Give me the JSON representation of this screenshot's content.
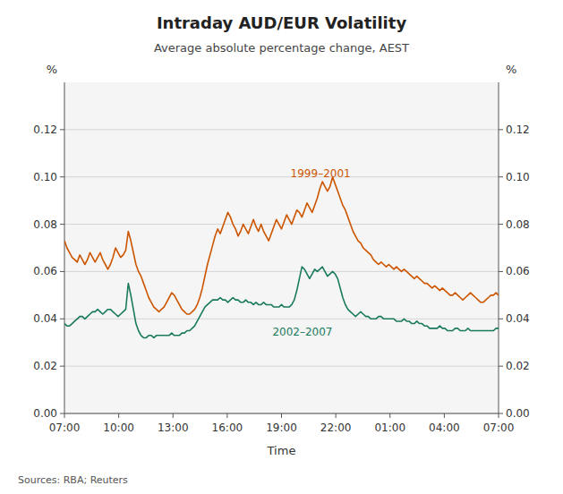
{
  "chart_data": {
    "type": "line",
    "title": "Intraday AUD/EUR Volatility",
    "subtitle": "Average absolute percentage change, AEST",
    "xlabel": "Time",
    "ylabel": "%",
    "y2label": "%",
    "source": "Sources: RBA; Reuters",
    "grid": true,
    "xlim": [
      0,
      24
    ],
    "xticks": [
      {
        "value": 0,
        "label": "07:00"
      },
      {
        "value": 3,
        "label": "10:00"
      },
      {
        "value": 6,
        "label": "13:00"
      },
      {
        "value": 9,
        "label": "16:00"
      },
      {
        "value": 12,
        "label": "19:00"
      },
      {
        "value": 15,
        "label": "22:00"
      },
      {
        "value": 18,
        "label": "01:00"
      },
      {
        "value": 21,
        "label": "04:00"
      },
      {
        "value": 24,
        "label": "07:00"
      }
    ],
    "ylim": [
      0.0,
      0.14
    ],
    "yticks": [
      {
        "value": 0.0,
        "label": "0.00"
      },
      {
        "value": 0.02,
        "label": "0.02"
      },
      {
        "value": 0.04,
        "label": "0.04"
      },
      {
        "value": 0.06,
        "label": "0.06"
      },
      {
        "value": 0.08,
        "label": "0.08"
      },
      {
        "value": 0.1,
        "label": "0.10"
      },
      {
        "value": 0.12,
        "label": "0.12"
      }
    ],
    "y2lim": [
      0.0,
      0.14
    ],
    "y2ticks": [
      {
        "value": 0.0,
        "label": "0.00"
      },
      {
        "value": 0.02,
        "label": "0.02"
      },
      {
        "value": 0.04,
        "label": "0.04"
      },
      {
        "value": 0.06,
        "label": "0.06"
      },
      {
        "value": 0.08,
        "label": "0.08"
      },
      {
        "value": 0.1,
        "label": "0.10"
      },
      {
        "value": 0.12,
        "label": "0.12"
      }
    ],
    "annotations": [
      {
        "text": "1999–2001",
        "x": 12.5,
        "y": 0.1
      },
      {
        "text": "2002–2007",
        "x": 11.5,
        "y": 0.033
      }
    ],
    "x": [
      0,
      0.1412,
      0.2824,
      0.4235,
      0.5647,
      0.7059,
      0.8471,
      0.9882,
      1.1294,
      1.2706,
      1.4118,
      1.5529,
      1.6941,
      1.8353,
      1.9765,
      2.1176,
      2.2588,
      2.4,
      2.5412,
      2.6824,
      2.8235,
      2.9647,
      3.1059,
      3.2471,
      3.3882,
      3.5294,
      3.6706,
      3.8118,
      3.9529,
      4.0941,
      4.2353,
      4.3765,
      4.5176,
      4.6588,
      4.8,
      4.9412,
      5.0824,
      5.2235,
      5.3647,
      5.5059,
      5.6471,
      5.7882,
      5.9294,
      6.0706,
      6.2118,
      6.3529,
      6.4941,
      6.6353,
      6.7765,
      6.9176,
      7.0588,
      7.2,
      7.3412,
      7.4824,
      7.6235,
      7.7647,
      7.9059,
      8.0471,
      8.1882,
      8.3294,
      8.4706,
      8.6118,
      8.7529,
      8.8941,
      9.0353,
      9.1765,
      9.3176,
      9.4588,
      9.6,
      9.7412,
      9.8824,
      10.0235,
      10.1647,
      10.3059,
      10.4471,
      10.5882,
      10.7294,
      10.8706,
      11.0118,
      11.1529,
      11.2941,
      11.4353,
      11.5765,
      11.7176,
      11.8588,
      12,
      12.1412,
      12.2824,
      12.4235,
      12.5647,
      12.7059,
      12.8471,
      12.9882,
      13.1294,
      13.2706,
      13.4118,
      13.5529,
      13.6941,
      13.8353,
      13.9765,
      14.1176,
      14.2588,
      14.4,
      14.5412,
      14.6824,
      14.8235,
      14.9647,
      15.1059,
      15.2471,
      15.3882,
      15.5294,
      15.6706,
      15.8118,
      15.9529,
      16.0941,
      16.2353,
      16.3765,
      16.5176,
      16.6588,
      16.8,
      16.9412,
      17.0824,
      17.2235,
      17.3647,
      17.5059,
      17.6471,
      17.7882,
      17.9294,
      18.0706,
      18.2118,
      18.3529,
      18.4941,
      18.6353,
      18.7765,
      18.9176,
      19.0588,
      19.2,
      19.3412,
      19.4824,
      19.6235,
      19.7647,
      19.9059,
      20.0471,
      20.1882,
      20.3294,
      20.4706,
      20.6118,
      20.7529,
      20.8941,
      21.0353,
      21.1765,
      21.3176,
      21.4588,
      21.6,
      21.7412,
      21.8824,
      22.0235,
      22.1647,
      22.3059,
      22.4471,
      22.5882,
      22.7294,
      22.8706,
      23.0118,
      23.1529,
      23.2941,
      23.4353,
      23.5765,
      23.7176,
      23.8588,
      24
    ],
    "series": [
      {
        "color": "#CC5500",
        "values": [
          0.073,
          0.07,
          0.068,
          0.066,
          0.065,
          0.064,
          0.067,
          0.065,
          0.063,
          0.065,
          0.068,
          0.066,
          0.064,
          0.066,
          0.068,
          0.065,
          0.063,
          0.061,
          0.063,
          0.066,
          0.07,
          0.068,
          0.066,
          0.067,
          0.069,
          0.077,
          0.073,
          0.068,
          0.063,
          0.06,
          0.058,
          0.055,
          0.052,
          0.049,
          0.047,
          0.045,
          0.044,
          0.043,
          0.044,
          0.045,
          0.047,
          0.049,
          0.051,
          0.05,
          0.048,
          0.046,
          0.044,
          0.043,
          0.042,
          0.042,
          0.043,
          0.044,
          0.046,
          0.049,
          0.053,
          0.058,
          0.063,
          0.067,
          0.071,
          0.075,
          0.078,
          0.076,
          0.079,
          0.082,
          0.085,
          0.083,
          0.08,
          0.078,
          0.075,
          0.077,
          0.08,
          0.078,
          0.076,
          0.079,
          0.082,
          0.079,
          0.077,
          0.08,
          0.077,
          0.075,
          0.073,
          0.076,
          0.079,
          0.082,
          0.08,
          0.078,
          0.081,
          0.084,
          0.082,
          0.08,
          0.083,
          0.086,
          0.085,
          0.083,
          0.086,
          0.089,
          0.087,
          0.085,
          0.088,
          0.091,
          0.095,
          0.098,
          0.096,
          0.094,
          0.096,
          0.1,
          0.097,
          0.094,
          0.091,
          0.088,
          0.086,
          0.083,
          0.08,
          0.077,
          0.075,
          0.073,
          0.072,
          0.07,
          0.069,
          0.068,
          0.067,
          0.065,
          0.064,
          0.063,
          0.064,
          0.063,
          0.062,
          0.063,
          0.062,
          0.061,
          0.062,
          0.061,
          0.06,
          0.061,
          0.06,
          0.059,
          0.058,
          0.057,
          0.058,
          0.057,
          0.056,
          0.055,
          0.055,
          0.054,
          0.053,
          0.054,
          0.053,
          0.052,
          0.053,
          0.052,
          0.051,
          0.05,
          0.05,
          0.051,
          0.05,
          0.049,
          0.048,
          0.049,
          0.05,
          0.051,
          0.05,
          0.049,
          0.048,
          0.047,
          0.047,
          0.048,
          0.049,
          0.05,
          0.05,
          0.051,
          0.05
        ]
      },
      {
        "color": "#1A7A5E",
        "values": [
          0.038,
          0.037,
          0.037,
          0.038,
          0.039,
          0.04,
          0.041,
          0.041,
          0.04,
          0.041,
          0.042,
          0.043,
          0.043,
          0.044,
          0.043,
          0.042,
          0.043,
          0.044,
          0.044,
          0.043,
          0.042,
          0.041,
          0.042,
          0.043,
          0.044,
          0.055,
          0.05,
          0.044,
          0.038,
          0.035,
          0.033,
          0.032,
          0.032,
          0.033,
          0.033,
          0.032,
          0.033,
          0.033,
          0.033,
          0.033,
          0.033,
          0.033,
          0.034,
          0.033,
          0.033,
          0.033,
          0.034,
          0.034,
          0.035,
          0.035,
          0.036,
          0.037,
          0.039,
          0.041,
          0.043,
          0.045,
          0.046,
          0.047,
          0.048,
          0.048,
          0.048,
          0.049,
          0.048,
          0.048,
          0.047,
          0.048,
          0.049,
          0.048,
          0.048,
          0.047,
          0.047,
          0.048,
          0.047,
          0.047,
          0.046,
          0.047,
          0.046,
          0.046,
          0.047,
          0.046,
          0.046,
          0.046,
          0.045,
          0.045,
          0.045,
          0.046,
          0.045,
          0.045,
          0.045,
          0.046,
          0.048,
          0.052,
          0.057,
          0.062,
          0.061,
          0.059,
          0.057,
          0.059,
          0.061,
          0.06,
          0.061,
          0.062,
          0.06,
          0.058,
          0.059,
          0.06,
          0.059,
          0.057,
          0.053,
          0.049,
          0.046,
          0.044,
          0.043,
          0.042,
          0.041,
          0.042,
          0.043,
          0.042,
          0.041,
          0.041,
          0.04,
          0.04,
          0.04,
          0.041,
          0.041,
          0.04,
          0.04,
          0.04,
          0.04,
          0.04,
          0.039,
          0.039,
          0.039,
          0.04,
          0.039,
          0.039,
          0.038,
          0.038,
          0.039,
          0.038,
          0.038,
          0.037,
          0.037,
          0.036,
          0.036,
          0.036,
          0.036,
          0.037,
          0.036,
          0.036,
          0.035,
          0.035,
          0.035,
          0.036,
          0.036,
          0.035,
          0.035,
          0.035,
          0.036,
          0.035,
          0.035,
          0.035,
          0.035,
          0.035,
          0.035,
          0.035,
          0.035,
          0.035,
          0.035,
          0.036,
          0.036
        ]
      }
    ]
  }
}
